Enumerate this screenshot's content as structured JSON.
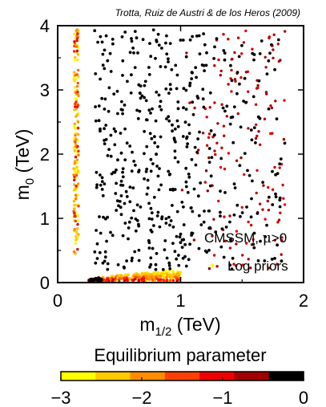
{
  "chart_data": [
    {
      "type": "scatter",
      "citation": "Trotta, Ruiz de Austri & de los Heros (2009)",
      "xlabel": "m",
      "xlabel_sub": "1/2",
      "xlabel_unit": " (TeV)",
      "ylabel": "m",
      "ylabel_sub": "0",
      "ylabel_unit": " (TeV)",
      "xlim": [
        0,
        2
      ],
      "ylim": [
        0,
        4
      ],
      "xticks": [
        "0",
        "1",
        "2"
      ],
      "yticks": [
        "0",
        "1",
        "2",
        "3",
        "4"
      ],
      "grid": false,
      "legend_position": "lower-right",
      "legend": {
        "line1_prefix": "CMSSM, ",
        "line1_greek": "μ",
        "line1_suffix": ">0",
        "line2": "Log priors",
        "marker_color": "#ffff00"
      },
      "colors": {
        "scale": [
          "#ffff00",
          "#ffc800",
          "#ff8c00",
          "#ff4000",
          "#ee0000",
          "#a00000",
          "#000000"
        ]
      },
      "series": [
        {
          "cluster": "focus-point strip",
          "x_range": [
            0.13,
            0.17
          ],
          "y_range": [
            0.45,
            3.95
          ],
          "level_range": [
            -3,
            -0.8
          ],
          "approx_points": 180
        },
        {
          "cluster": "stau co-annihilation strip",
          "x_range": [
            0.25,
            1.0
          ],
          "y_range": [
            0.02,
            0.25
          ],
          "level_range": [
            -3,
            0
          ],
          "approx_points": 300
        },
        {
          "cluster": "high-mass scatter",
          "x_range": [
            0.3,
            1.85
          ],
          "y_range": [
            0.2,
            3.95
          ],
          "level_range": [
            -1.2,
            0
          ],
          "approx_points": 650
        }
      ]
    },
    {
      "type": "colorbar",
      "title": "Equilibrium parameter",
      "range": [
        -3,
        0
      ],
      "ticks": [
        "−3",
        "−2",
        "−1",
        "0"
      ]
    }
  ]
}
